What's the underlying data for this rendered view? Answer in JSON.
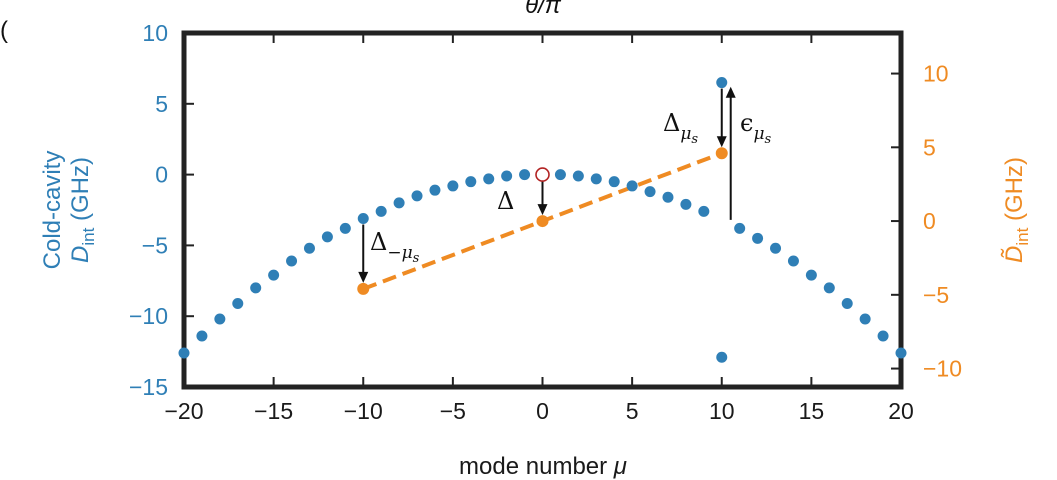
{
  "chart_data": {
    "type": "scatter",
    "top_label": "θ/π",
    "corner_label": "(",
    "xlabel": "mode number μ",
    "ylabel_left_line1": "Cold-cavity",
    "ylabel_left_line2": "D",
    "ylabel_left_sub": "int",
    "ylabel_left_unit": " (GHz)",
    "ylabel_right": "D̃",
    "ylabel_right_sub": "int",
    "ylabel_right_unit": " (GHz)",
    "xlim": [
      -20,
      20
    ],
    "ylim_left": [
      -15,
      10
    ],
    "ylim_right": [
      -11.25,
      12.75
    ],
    "xticks": [
      "−20",
      "−15",
      "−10",
      "−5",
      "0",
      "5",
      "10",
      "15",
      "20"
    ],
    "xtick_values": [
      -20,
      -15,
      -10,
      -5,
      0,
      5,
      10,
      15,
      20
    ],
    "yticks_left": [
      "10",
      "5",
      "0",
      "−5",
      "−10",
      "−15"
    ],
    "ytick_left_values": [
      10,
      5,
      0,
      -5,
      -10,
      -15
    ],
    "yticks_right": [
      "10",
      "5",
      "0",
      "−5",
      "−10"
    ],
    "ytick_right_values": [
      10,
      5,
      0,
      -5,
      -10
    ],
    "colors": {
      "blue": "#2f7fb6",
      "orange": "#ef8b23",
      "hollow_edge": "#b22222"
    },
    "series": [
      {
        "axis": "left",
        "color": "#2f7fb6",
        "x": [
          -20,
          -19,
          -18,
          -17,
          -16,
          -15,
          -14,
          -13,
          -12,
          -11,
          -10,
          -9,
          -8,
          -7,
          -6,
          -5,
          -4,
          -3,
          -2,
          -1,
          1,
          2,
          3,
          4,
          5,
          6,
          7,
          8,
          9,
          10,
          10,
          11,
          12,
          13,
          14,
          15,
          16,
          17,
          18,
          19,
          20
        ],
        "y": [
          -12.6,
          -11.4,
          -10.2,
          -9.1,
          -8.0,
          -7.1,
          -6.1,
          -5.2,
          -4.4,
          -3.8,
          -3.1,
          -2.6,
          -2.0,
          -1.5,
          -1.1,
          -0.8,
          -0.5,
          -0.3,
          -0.1,
          0.0,
          0.0,
          -0.1,
          -0.3,
          -0.5,
          -0.8,
          -1.2,
          -1.6,
          -2.1,
          -2.6,
          6.5,
          -12.9,
          -3.8,
          -4.5,
          -5.2,
          -6.1,
          -7.1,
          -8.0,
          -9.1,
          -10.2,
          -11.4,
          -12.6
        ]
      },
      {
        "axis": "left",
        "marker": "hollow",
        "x": [
          0
        ],
        "y": [
          0.0
        ]
      },
      {
        "axis": "right",
        "color": "#ef8b23",
        "line": "dashed",
        "x": [
          -10,
          0,
          10
        ],
        "y": [
          -4.6,
          0.0,
          4.6
        ]
      }
    ],
    "annotations": [
      {
        "text": "Δ",
        "sub": "−μ",
        "subsub": "s",
        "kind": "arrow-down",
        "x": -10,
        "from_left": -3.1,
        "to_right": -4.6
      },
      {
        "text": "Δ",
        "sub": "",
        "subsub": "",
        "kind": "arrow-down",
        "x": 0,
        "from_left": 0.0,
        "to_right": 0.0
      },
      {
        "text": "Δ",
        "sub": "μ",
        "subsub": "s",
        "kind": "arrow-down",
        "x": 10,
        "from_left": 6.5,
        "to_right": 4.6
      },
      {
        "text": "ϵ",
        "sub": "μ",
        "subsub": "s",
        "kind": "arrow-up",
        "x": 10.5,
        "from_left": -3.2,
        "to_left": 6.2
      }
    ]
  }
}
